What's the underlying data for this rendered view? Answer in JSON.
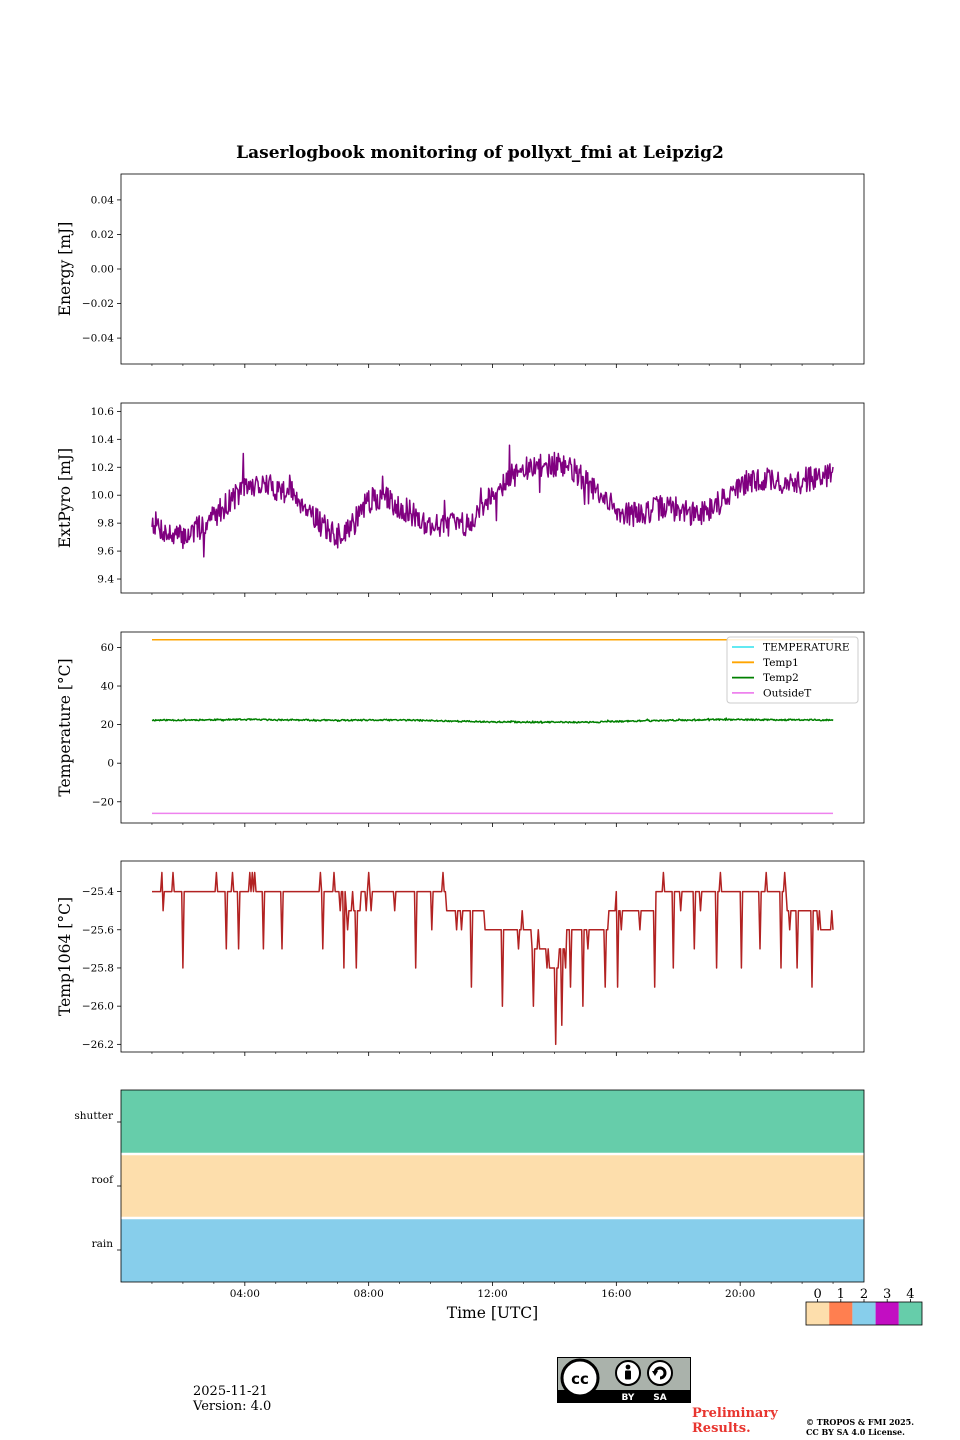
{
  "chart_data": [
    {
      "id": "energy",
      "type": "line",
      "title": "Laserlogbook monitoring of pollyxt_fmi at Leipzig2",
      "ylabel": "Energy [mJ]",
      "ylim": [
        -0.055,
        0.055
      ],
      "yticks": [
        -0.04,
        -0.02,
        0.0,
        0.02,
        0.04
      ],
      "ytick_labels": [
        "−0.04",
        "−0.02",
        "0.00",
        "0.02",
        "0.04"
      ],
      "series": []
    },
    {
      "id": "extpyro",
      "type": "line",
      "ylabel": "ExtPyro [mJ]",
      "ylim": [
        9.3,
        10.66
      ],
      "yticks": [
        9.4,
        9.6,
        9.8,
        10.0,
        10.2,
        10.4,
        10.6
      ],
      "ytick_labels": [
        "9.4",
        "9.6",
        "9.8",
        "10.0",
        "10.2",
        "10.4",
        "10.6"
      ],
      "series": [
        {
          "name": "ExtPyro",
          "color": "#800080",
          "x": [
            1.0,
            1.5,
            2.0,
            2.5,
            3.0,
            3.5,
            4.0,
            4.5,
            5.0,
            5.5,
            6.0,
            6.5,
            7.0,
            7.5,
            8.0,
            8.5,
            9.0,
            9.5,
            10.0,
            10.5,
            11.0,
            11.5,
            12.0,
            12.5,
            13.0,
            13.5,
            14.0,
            14.5,
            15.0,
            15.5,
            16.0,
            16.5,
            17.0,
            17.5,
            18.0,
            18.5,
            19.0,
            19.5,
            20.0,
            20.5,
            21.0,
            21.5,
            22.0,
            22.5,
            23.0
          ],
          "y": [
            9.82,
            9.72,
            9.7,
            9.76,
            9.85,
            9.96,
            10.05,
            10.08,
            10.05,
            10.02,
            9.92,
            9.78,
            9.7,
            9.8,
            9.96,
            9.98,
            9.92,
            9.85,
            9.78,
            9.8,
            9.78,
            9.86,
            10.02,
            10.12,
            10.18,
            10.2,
            10.22,
            10.2,
            10.1,
            9.98,
            9.9,
            9.86,
            9.88,
            9.92,
            9.9,
            9.86,
            9.9,
            9.98,
            10.06,
            10.1,
            10.12,
            10.06,
            10.1,
            10.14,
            10.14
          ],
          "noise": 0.09,
          "seed": 7
        }
      ]
    },
    {
      "id": "temperature",
      "type": "line",
      "ylabel": "Temperature [°C]",
      "ylim": [
        -31,
        68
      ],
      "yticks": [
        -20,
        0,
        20,
        40,
        60
      ],
      "ytick_labels": [
        "−20",
        "0",
        "20",
        "40",
        "60"
      ],
      "legend": "top-right",
      "series": [
        {
          "name": "TEMPERATURE",
          "color": "#4de6f0",
          "x": [],
          "y": []
        },
        {
          "name": "Temp1",
          "color": "#ffa500",
          "x": [
            1.0,
            23.0
          ],
          "y": [
            64,
            64
          ]
        },
        {
          "name": "Temp2",
          "color": "#008000",
          "x": [
            1.0,
            4.0,
            7.0,
            9.0,
            12.0,
            15.0,
            17.0,
            19.0,
            21.0,
            23.0
          ],
          "y": [
            22.3,
            22.6,
            22.2,
            22.4,
            21.4,
            21.2,
            22.0,
            22.6,
            22.5,
            22.4
          ],
          "noise": 0.4,
          "seed": 11
        },
        {
          "name": "OutsideT",
          "color": "#ee82ee",
          "x": [
            1.0,
            23.0
          ],
          "y": [
            -26,
            -26
          ]
        }
      ]
    },
    {
      "id": "temp1064",
      "type": "line",
      "ylabel": "Temp1064 [°C]",
      "ylim": [
        -26.24,
        -25.24
      ],
      "yticks": [
        -26.2,
        -26.0,
        -25.8,
        -25.6,
        -25.4
      ],
      "ytick_labels": [
        "−26.2",
        "−26.0",
        "−25.8",
        "−25.6",
        "−25.4"
      ],
      "series": [
        {
          "name": "Temp1064",
          "color": "#b22222",
          "x": [
            1.0,
            3.0,
            6.0,
            7.0,
            7.5,
            8.0,
            9.0,
            10.0,
            11.0,
            11.5,
            12.0,
            13.0,
            13.5,
            14.0,
            14.5,
            15.0,
            15.5,
            16.0,
            16.5,
            17.0,
            17.5,
            18.0,
            20.0,
            21.0,
            22.0,
            23.0
          ],
          "y": [
            -25.4,
            -25.4,
            -25.4,
            -25.4,
            -25.5,
            -25.4,
            -25.4,
            -25.4,
            -25.5,
            -25.5,
            -25.6,
            -25.6,
            -25.7,
            -25.8,
            -25.6,
            -25.6,
            -25.6,
            -25.5,
            -25.5,
            -25.5,
            -25.4,
            -25.4,
            -25.4,
            -25.4,
            -25.5,
            -25.6
          ],
          "spikes": [
            {
              "x": 2.0,
              "y": -25.8
            },
            {
              "x": 3.4,
              "y": -25.7
            },
            {
              "x": 3.6,
              "y": -25.3
            },
            {
              "x": 3.8,
              "y": -25.7
            },
            {
              "x": 4.3,
              "y": -25.3
            },
            {
              "x": 4.6,
              "y": -25.7
            },
            {
              "x": 5.2,
              "y": -25.7
            },
            {
              "x": 6.5,
              "y": -25.7
            },
            {
              "x": 7.2,
              "y": -25.8
            },
            {
              "x": 7.6,
              "y": -25.8
            },
            {
              "x": 8.8,
              "y": -25.5
            },
            {
              "x": 9.5,
              "y": -25.8
            },
            {
              "x": 10.0,
              "y": -25.6
            },
            {
              "x": 11.3,
              "y": -25.9
            },
            {
              "x": 12.3,
              "y": -26.0
            },
            {
              "x": 12.8,
              "y": -25.7
            },
            {
              "x": 13.3,
              "y": -26.0
            },
            {
              "x": 14.0,
              "y": -26.2
            },
            {
              "x": 14.2,
              "y": -26.1
            },
            {
              "x": 14.5,
              "y": -25.9
            },
            {
              "x": 14.9,
              "y": -26.0
            },
            {
              "x": 15.6,
              "y": -25.9
            },
            {
              "x": 16.0,
              "y": -25.9
            },
            {
              "x": 16.5,
              "y": -25.5
            },
            {
              "x": 17.2,
              "y": -25.9
            },
            {
              "x": 17.8,
              "y": -25.8
            },
            {
              "x": 18.5,
              "y": -25.7
            },
            {
              "x": 19.2,
              "y": -25.8
            },
            {
              "x": 20.0,
              "y": -25.8
            },
            {
              "x": 20.6,
              "y": -25.7
            },
            {
              "x": 21.3,
              "y": -25.8
            },
            {
              "x": 21.8,
              "y": -25.8
            },
            {
              "x": 22.3,
              "y": -25.9
            }
          ],
          "seed": 5
        }
      ]
    },
    {
      "id": "status",
      "type": "heatmap",
      "xlabel": "Time [UTC]",
      "xlim": [
        0,
        24
      ],
      "xticks": [
        4,
        8,
        12,
        16,
        20
      ],
      "xtick_labels": [
        "04:00",
        "08:00",
        "12:00",
        "16:00",
        "20:00"
      ],
      "rows": [
        {
          "label": "shutter",
          "value": 4
        },
        {
          "label": "roof",
          "value": 0
        },
        {
          "label": "rain",
          "value": 2
        }
      ],
      "colorbar": {
        "values": [
          0,
          1,
          2,
          3,
          4
        ],
        "labels": [
          "0",
          "1",
          "2",
          "3",
          "4"
        ],
        "colors": [
          "#fddeac",
          "#ff7f50",
          "#87ceeb",
          "#c20ec2",
          "#66cdaa"
        ]
      }
    }
  ],
  "time_axis": {
    "xlim": [
      0,
      24
    ],
    "xticks": [
      4,
      8,
      12,
      16,
      20
    ]
  },
  "footer": {
    "date": "2025-11-21",
    "version": "Version: 4.0",
    "preliminary_line1": "Preliminary",
    "preliminary_line2": "Results.",
    "copyright_line1": "© TROPOS & FMI 2025.",
    "copyright_line2": "CC BY SA 4.0 License.",
    "license_by": "BY",
    "license_sa": "SA"
  }
}
